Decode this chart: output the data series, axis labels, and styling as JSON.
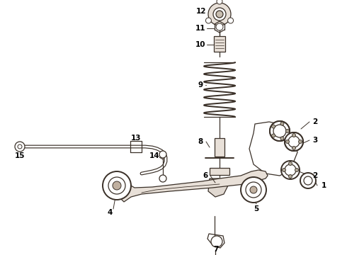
{
  "bg_color": "#ffffff",
  "line_color": "#3a3028",
  "label_color": "#000000",
  "fig_width": 4.9,
  "fig_height": 3.6,
  "dpi": 100
}
